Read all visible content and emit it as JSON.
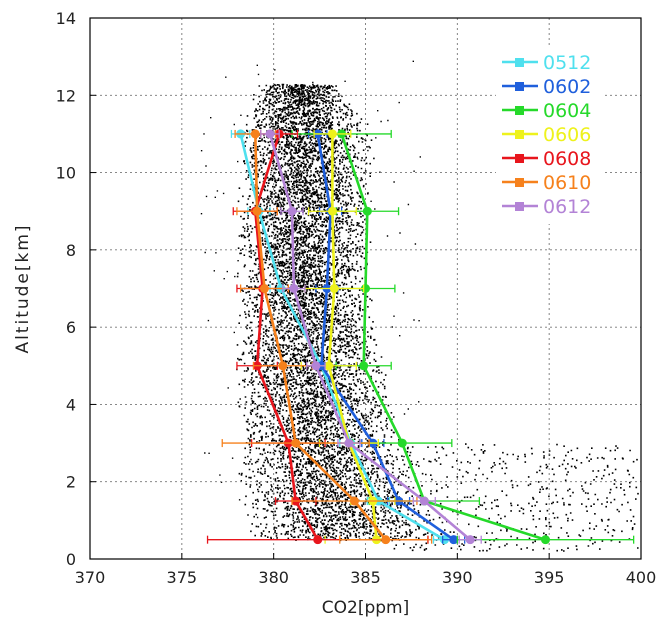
{
  "chart_data": {
    "type": "line",
    "title": "",
    "xlabel": "CO2[ppm]",
    "ylabel": "Altitude[km]",
    "xlim": [
      370,
      400
    ],
    "ylim": [
      0,
      14
    ],
    "xticks": [
      370,
      375,
      380,
      385,
      390,
      395,
      400
    ],
    "yticks": [
      0,
      2,
      4,
      6,
      8,
      10,
      12,
      14
    ],
    "grid": true,
    "legend_position": "top-right",
    "background_scatter": {
      "color": "#000000",
      "description_points": [
        [
          378.5,
          0.5,
          389.5,
          0.5
        ],
        [
          378.0,
          1.5,
          388.0,
          1.5
        ],
        [
          378.0,
          3.0,
          387.0,
          3.0
        ],
        [
          377.8,
          5.0,
          386.2,
          5.0
        ],
        [
          377.8,
          7.0,
          385.5,
          7.0
        ],
        [
          377.8,
          9.0,
          385.3,
          9.0
        ],
        [
          378.0,
          11.0,
          385.6,
          11.0
        ],
        [
          379.0,
          12.3,
          383.5,
          12.3
        ]
      ]
    },
    "series": [
      {
        "name": "0512",
        "color": "#4fe0ee",
        "x": [
          389.3,
          385.7,
          384.2,
          382.6,
          380.4,
          379.2,
          378.2
        ],
        "y": [
          0.5,
          1.5,
          3.0,
          5.0,
          7.0,
          9.0,
          11.0
        ],
        "err": [
          0.6,
          0.6,
          0.6,
          0.5,
          0.6,
          0.6,
          0.5
        ]
      },
      {
        "name": "0602",
        "color": "#1f5fdc",
        "x": [
          389.8,
          386.8,
          385.4,
          382.6,
          382.9,
          383.1,
          382.4
        ],
        "y": [
          0.5,
          1.5,
          3.0,
          5.0,
          7.0,
          9.0,
          11.0
        ],
        "err": [
          0.6,
          0.6,
          0.6,
          0.5,
          0.6,
          0.6,
          0.5
        ]
      },
      {
        "name": "0604",
        "color": "#25d92a",
        "x": [
          394.8,
          388.2,
          387.0,
          384.9,
          385.0,
          385.1,
          383.7
        ],
        "y": [
          0.5,
          1.5,
          3.0,
          5.0,
          7.0,
          9.0,
          11.0
        ],
        "err": [
          4.8,
          3.0,
          2.7,
          1.5,
          1.6,
          1.7,
          2.7
        ]
      },
      {
        "name": "0606",
        "color": "#eef21c",
        "x": [
          385.6,
          385.4,
          384.1,
          383.0,
          383.3,
          383.2,
          383.2
        ],
        "y": [
          0.5,
          1.5,
          3.0,
          5.0,
          7.0,
          9.0,
          11.0
        ],
        "err": [
          2.8,
          1.2,
          1.6,
          1.5,
          1.6,
          1.3,
          1.0
        ]
      },
      {
        "name": "0608",
        "color": "#e8151c",
        "x": [
          382.4,
          381.2,
          380.8,
          379.1,
          379.4,
          379.0,
          380.3
        ],
        "y": [
          0.5,
          1.5,
          3.0,
          5.0,
          7.0,
          9.0,
          11.0
        ],
        "err": [
          6.0,
          1.1,
          2.0,
          1.1,
          1.4,
          1.2,
          1.0
        ]
      },
      {
        "name": "0610",
        "color": "#f6811c",
        "x": [
          386.1,
          384.4,
          381.2,
          380.5,
          379.5,
          379.1,
          379.0
        ],
        "y": [
          0.5,
          1.5,
          3.0,
          5.0,
          7.0,
          9.0,
          11.0
        ],
        "err": [
          2.5,
          3.4,
          4.0,
          1.6,
          1.3,
          1.1,
          1.1
        ]
      },
      {
        "name": "0612",
        "color": "#b383d6",
        "x": [
          390.7,
          388.2,
          384.1,
          382.3,
          381.1,
          381.0,
          379.8
        ],
        "y": [
          0.5,
          1.5,
          3.0,
          5.0,
          7.0,
          9.0,
          11.0
        ],
        "err": [
          0.6,
          0.6,
          0.6,
          0.5,
          0.6,
          0.6,
          0.5
        ]
      }
    ]
  }
}
